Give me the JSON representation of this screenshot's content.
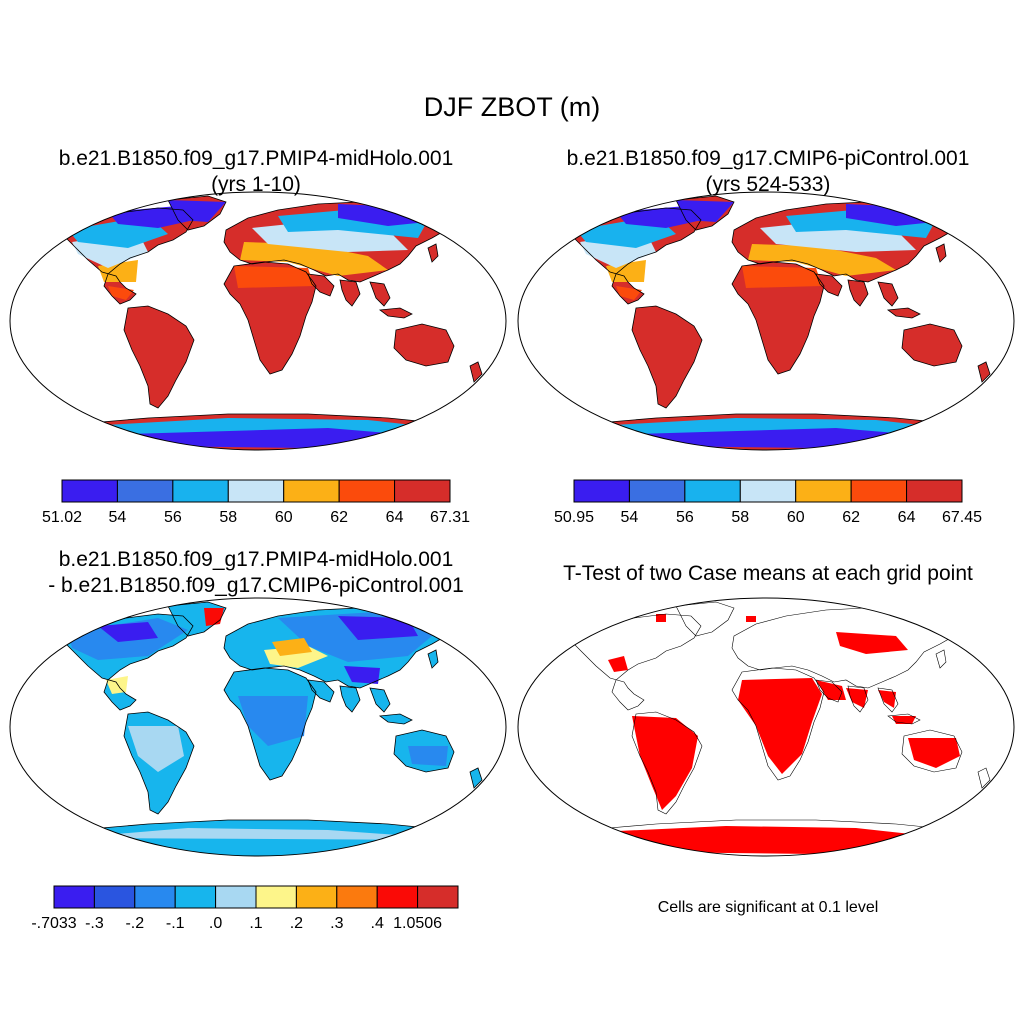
{
  "figure": {
    "title": "DJF ZBOT (m)"
  },
  "panels": [
    {
      "id": "midholo",
      "title_line1": "b.e21.B1850.f09_g17.PMIP4-midHolo.001",
      "title_line2": "(yrs 1-10)",
      "colorbar": {
        "colors": [
          "#3a1df0",
          "#3a6fe2",
          "#18b2ee",
          "#c8e5f7",
          "#fcb016",
          "#fb4b0c",
          "#d62d2a"
        ],
        "labels": [
          "51.02",
          "54",
          "56",
          "58",
          "60",
          "62",
          "64",
          "67.31"
        ]
      }
    },
    {
      "id": "picontrol",
      "title_line1": "b.e21.B1850.f09_g17.CMIP6-piControl.001",
      "title_line2": "(yrs 524-533)",
      "colorbar": {
        "colors": [
          "#3a1df0",
          "#3a6fe2",
          "#18b2ee",
          "#c8e5f7",
          "#fcb016",
          "#fb4b0c",
          "#d62d2a"
        ],
        "labels": [
          "50.95",
          "54",
          "56",
          "58",
          "60",
          "62",
          "64",
          "67.45"
        ]
      }
    },
    {
      "id": "difference",
      "title_line1": "b.e21.B1850.f09_g17.PMIP4-midHolo.001",
      "title_line2": "- b.e21.B1850.f09_g17.CMIP6-piControl.001",
      "colorbar": {
        "colors": [
          "#3a1df0",
          "#2a55e0",
          "#2889ef",
          "#17b5ed",
          "#a8d8f2",
          "#fdf58a",
          "#fcb016",
          "#fb7a0e",
          "#fa0a06",
          "#d62d2a"
        ],
        "labels": [
          "-.7033",
          "-.3",
          "-.2",
          "-.1",
          ".0",
          ".1",
          ".2",
          ".3",
          ".4",
          "1.0506"
        ]
      }
    },
    {
      "id": "ttest",
      "title_line1": "T-Test of two Case means at each grid point",
      "note": "Cells are significant at 0.1 level",
      "fill_color": "#ff0000"
    }
  ]
}
